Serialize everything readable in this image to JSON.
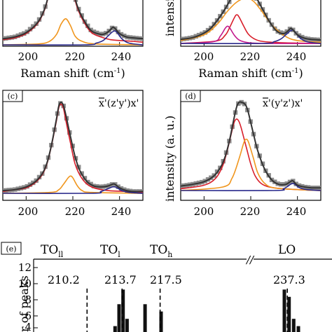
{
  "chart_data": [
    {
      "id": "a",
      "type": "line",
      "xlabel": "Raman shift (cm-1)",
      "xlabel_main": "Raman shift (cm",
      "xlabel_sup": "-1",
      "xlabel_tail": ")",
      "xticks": [
        "200",
        "220",
        "240"
      ],
      "xlim": [
        190,
        250
      ],
      "series": [
        {
          "kind": "data",
          "color": "#8c8c8c",
          "x": [
            190,
            195,
            200,
            205,
            208,
            210,
            212,
            214,
            215,
            216,
            218,
            220,
            222,
            225,
            228,
            232,
            234,
            236,
            237,
            238,
            240,
            243,
            246,
            250
          ],
          "y": [
            0.07,
            0.09,
            0.14,
            0.26,
            0.42,
            0.62,
            0.85,
            1.02,
            1.06,
            1.04,
            0.88,
            0.64,
            0.44,
            0.27,
            0.16,
            0.12,
            0.13,
            0.17,
            0.2,
            0.19,
            0.13,
            0.09,
            0.08,
            0.07
          ]
        },
        {
          "kind": "fit",
          "color": "#333333",
          "x": [
            190,
            195,
            200,
            205,
            208,
            210,
            212,
            214,
            215,
            216,
            218,
            220,
            222,
            225,
            228,
            232,
            234,
            236,
            237,
            238,
            240,
            243,
            246,
            250
          ],
          "y": [
            0.07,
            0.09,
            0.14,
            0.26,
            0.42,
            0.62,
            0.85,
            1.02,
            1.06,
            1.04,
            0.88,
            0.64,
            0.44,
            0.27,
            0.16,
            0.12,
            0.13,
            0.17,
            0.2,
            0.19,
            0.13,
            0.09,
            0.08,
            0.07
          ]
        },
        {
          "kind": "comp",
          "color": "#d81e2a",
          "x": [
            190,
            195,
            200,
            205,
            208,
            210,
            212,
            214,
            215,
            216,
            218,
            220,
            222,
            225,
            228,
            232,
            236,
            240,
            246,
            250
          ],
          "y": [
            0.06,
            0.08,
            0.13,
            0.25,
            0.41,
            0.61,
            0.84,
            1.0,
            1.04,
            1.02,
            0.86,
            0.62,
            0.42,
            0.25,
            0.14,
            0.09,
            0.06,
            0.05,
            0.04,
            0.03
          ]
        },
        {
          "kind": "comp",
          "color": "#f0961e",
          "x": [
            190,
            205,
            210,
            213,
            215,
            217,
            219,
            221,
            224,
            230,
            250
          ],
          "y": [
            0.0,
            0.01,
            0.04,
            0.12,
            0.24,
            0.3,
            0.22,
            0.1,
            0.04,
            0.01,
            0.0
          ]
        },
        {
          "kind": "comp",
          "color": "#2a2a8c",
          "x": [
            190,
            225,
            230,
            233,
            235,
            237,
            238,
            239,
            241,
            244,
            250
          ],
          "y": [
            0.0,
            0.0,
            0.02,
            0.05,
            0.1,
            0.15,
            0.16,
            0.14,
            0.07,
            0.02,
            0.0
          ]
        }
      ]
    },
    {
      "id": "b",
      "type": "line",
      "ylabel": "intensi",
      "xlabel": "Raman shift (cm-1)",
      "xlabel_main": "Raman shift (cm",
      "xlabel_sup": "-1",
      "xlabel_tail": ")",
      "xticks": [
        "200",
        "220",
        "240"
      ],
      "xlim": [
        190,
        250
      ],
      "series": [
        {
          "kind": "data",
          "color": "#8c8c8c",
          "x": [
            190,
            195,
            200,
            203,
            206,
            209,
            211,
            213,
            215,
            217,
            219,
            222,
            225,
            228,
            231,
            234,
            236,
            237,
            238,
            240,
            243,
            246,
            250
          ],
          "y": [
            0.07,
            0.1,
            0.18,
            0.27,
            0.42,
            0.6,
            0.74,
            0.88,
            0.97,
            1.0,
            0.97,
            0.82,
            0.6,
            0.38,
            0.22,
            0.17,
            0.22,
            0.26,
            0.24,
            0.15,
            0.09,
            0.07,
            0.06
          ]
        },
        {
          "kind": "fit",
          "color": "#333333",
          "x": [
            190,
            195,
            200,
            203,
            206,
            209,
            211,
            213,
            215,
            217,
            219,
            222,
            225,
            228,
            231,
            234,
            236,
            237,
            238,
            240,
            243,
            246,
            250
          ],
          "y": [
            0.07,
            0.1,
            0.18,
            0.27,
            0.42,
            0.6,
            0.74,
            0.88,
            0.97,
            1.0,
            0.97,
            0.82,
            0.6,
            0.38,
            0.22,
            0.17,
            0.22,
            0.26,
            0.24,
            0.15,
            0.09,
            0.07,
            0.06
          ]
        },
        {
          "kind": "comp",
          "color": "#f0961e",
          "x": [
            190,
            200,
            206,
            210,
            214,
            218,
            221,
            224,
            227,
            230,
            235,
            240,
            250
          ],
          "y": [
            0.05,
            0.15,
            0.35,
            0.56,
            0.72,
            0.79,
            0.74,
            0.6,
            0.43,
            0.28,
            0.12,
            0.05,
            0.02
          ]
        },
        {
          "kind": "comp",
          "color": "#d81e2a",
          "x": [
            190,
            205,
            209,
            211,
            213,
            214,
            215,
            217,
            219,
            222,
            226,
            235,
            250
          ],
          "y": [
            0.0,
            0.04,
            0.14,
            0.28,
            0.45,
            0.5,
            0.46,
            0.3,
            0.16,
            0.07,
            0.03,
            0.01,
            0.0
          ]
        },
        {
          "kind": "comp",
          "color": "#c2188b",
          "x": [
            190,
            204,
            207,
            209,
            210,
            211,
            213,
            215,
            218,
            225,
            250
          ],
          "y": [
            0.0,
            0.03,
            0.13,
            0.26,
            0.3,
            0.27,
            0.14,
            0.06,
            0.02,
            0.0,
            0.0
          ]
        },
        {
          "kind": "comp",
          "color": "#2a2a8c",
          "x": [
            190,
            225,
            230,
            233,
            235,
            237,
            238,
            239,
            241,
            244,
            250
          ],
          "y": [
            0.0,
            0.0,
            0.03,
            0.08,
            0.15,
            0.22,
            0.23,
            0.2,
            0.1,
            0.03,
            0.0
          ]
        }
      ]
    },
    {
      "id": "c",
      "type": "line",
      "panel_label": "(c)",
      "geometry_pre": "x",
      "geometry_mid": "'(z'y')x'",
      "xticks": [
        "200",
        "220",
        "240"
      ],
      "xlim": [
        190,
        250
      ],
      "series": [
        {
          "kind": "data",
          "color": "#8c8c8c",
          "x": [
            190,
            195,
            200,
            204,
            207,
            209,
            211,
            213,
            214,
            215,
            216,
            217,
            219,
            221,
            223,
            226,
            229,
            232,
            235,
            237,
            238,
            240,
            243,
            246,
            250
          ],
          "y": [
            0.03,
            0.04,
            0.07,
            0.13,
            0.22,
            0.34,
            0.55,
            0.82,
            0.96,
            1.0,
            0.96,
            0.86,
            0.62,
            0.4,
            0.25,
            0.13,
            0.08,
            0.07,
            0.08,
            0.1,
            0.1,
            0.06,
            0.03,
            0.02,
            0.02
          ]
        },
        {
          "kind": "fit",
          "color": "#333333",
          "x": [
            190,
            195,
            200,
            204,
            207,
            209,
            211,
            213,
            214,
            215,
            216,
            217,
            219,
            221,
            223,
            226,
            229,
            232,
            235,
            237,
            238,
            240,
            243,
            246,
            250
          ],
          "y": [
            0.03,
            0.04,
            0.07,
            0.13,
            0.22,
            0.34,
            0.55,
            0.82,
            0.96,
            1.0,
            0.96,
            0.86,
            0.62,
            0.4,
            0.25,
            0.13,
            0.08,
            0.07,
            0.08,
            0.1,
            0.1,
            0.06,
            0.03,
            0.02,
            0.02
          ]
        },
        {
          "kind": "comp",
          "color": "#d81e2a",
          "x": [
            190,
            195,
            200,
            204,
            207,
            209,
            211,
            213,
            214,
            215,
            216,
            217,
            219,
            221,
            224,
            228,
            235,
            245,
            250
          ],
          "y": [
            0.02,
            0.04,
            0.06,
            0.12,
            0.21,
            0.33,
            0.54,
            0.8,
            0.94,
            0.98,
            0.93,
            0.8,
            0.55,
            0.32,
            0.16,
            0.07,
            0.03,
            0.02,
            0.01
          ]
        },
        {
          "kind": "comp",
          "color": "#f0961e",
          "x": [
            190,
            210,
            214,
            216,
            218,
            219,
            220,
            222,
            224,
            228,
            250
          ],
          "y": [
            0.0,
            0.01,
            0.04,
            0.1,
            0.17,
            0.19,
            0.17,
            0.08,
            0.03,
            0.01,
            0.0
          ]
        },
        {
          "kind": "comp",
          "color": "#2a2a8c",
          "x": [
            190,
            228,
            232,
            235,
            237,
            238,
            239,
            241,
            244,
            250
          ],
          "y": [
            0.0,
            0.0,
            0.02,
            0.05,
            0.07,
            0.07,
            0.06,
            0.03,
            0.01,
            0.0
          ]
        }
      ]
    },
    {
      "id": "d",
      "type": "line",
      "panel_label": "(d)",
      "ylabel": "intensity (a. u.)",
      "geometry_pre": "x",
      "geometry_mid": "'(y'z')x'",
      "xticks": [
        "200",
        "220",
        "240"
      ],
      "xlim": [
        190,
        250
      ],
      "series": [
        {
          "kind": "data",
          "color": "#8c8c8c",
          "x": [
            190,
            195,
            200,
            204,
            207,
            209,
            211,
            213,
            214,
            215,
            216,
            217,
            218,
            219,
            221,
            223,
            226,
            229,
            232,
            235,
            237,
            238,
            240,
            243,
            246,
            250
          ],
          "y": [
            0.05,
            0.07,
            0.1,
            0.16,
            0.26,
            0.38,
            0.58,
            0.84,
            0.95,
            1.0,
            1.0,
            0.99,
            0.96,
            0.88,
            0.66,
            0.45,
            0.24,
            0.12,
            0.07,
            0.07,
            0.1,
            0.11,
            0.06,
            0.04,
            0.03,
            0.03
          ]
        },
        {
          "kind": "fit",
          "color": "#333333",
          "x": [
            190,
            195,
            200,
            204,
            207,
            209,
            211,
            213,
            214,
            215,
            216,
            217,
            218,
            219,
            221,
            223,
            226,
            229,
            232,
            235,
            237,
            238,
            240,
            243,
            246,
            250
          ],
          "y": [
            0.05,
            0.07,
            0.1,
            0.16,
            0.26,
            0.38,
            0.58,
            0.84,
            0.95,
            1.0,
            1.0,
            0.99,
            0.96,
            0.88,
            0.66,
            0.45,
            0.24,
            0.12,
            0.07,
            0.07,
            0.1,
            0.11,
            0.06,
            0.04,
            0.03,
            0.03
          ]
        },
        {
          "kind": "comp",
          "color": "#d81e2a",
          "x": [
            190,
            200,
            205,
            208,
            210,
            212,
            213,
            214,
            215,
            216,
            218,
            220,
            222,
            225,
            230,
            240,
            250
          ],
          "y": [
            0.02,
            0.06,
            0.14,
            0.28,
            0.46,
            0.68,
            0.78,
            0.81,
            0.78,
            0.7,
            0.5,
            0.3,
            0.16,
            0.07,
            0.03,
            0.01,
            0.0
          ]
        },
        {
          "kind": "comp",
          "color": "#f0961e",
          "x": [
            190,
            208,
            212,
            215,
            217,
            218,
            219,
            221,
            223,
            226,
            230,
            240,
            250
          ],
          "y": [
            0.0,
            0.04,
            0.14,
            0.36,
            0.54,
            0.58,
            0.55,
            0.38,
            0.2,
            0.08,
            0.03,
            0.01,
            0.0
          ]
        },
        {
          "kind": "comp",
          "color": "#2a2a8c",
          "x": [
            190,
            230,
            234,
            236,
            237,
            238,
            239,
            241,
            244,
            250
          ],
          "y": [
            0.0,
            0.0,
            0.02,
            0.05,
            0.07,
            0.08,
            0.07,
            0.03,
            0.01,
            0.0
          ]
        }
      ]
    },
    {
      "id": "e",
      "type": "bar",
      "panel_label": "(e)",
      "ylabel": "r of peaks",
      "yticks": [
        "12",
        "10",
        "8",
        "6",
        "4"
      ],
      "ylim": [
        0,
        12
      ],
      "mode_labels": [
        {
          "main": "TO",
          "sub": "ll",
          "x": 210.2
        },
        {
          "main": "TO",
          "sub": "l",
          "x": 213.7
        },
        {
          "main": "TO",
          "sub": "h",
          "x": 217.5
        },
        {
          "main": "LO",
          "sub": "",
          "x": 237.3
        }
      ],
      "mode_positions": [
        "210.2",
        "213.7",
        "217.5",
        "237.3"
      ],
      "axis_break": "//",
      "bars": [
        {
          "x": 212.6,
          "value": 3
        },
        {
          "x": 213.0,
          "value": 4
        },
        {
          "x": 213.4,
          "value": 7
        },
        {
          "x": 213.8,
          "value": 9
        },
        {
          "x": 214.2,
          "value": 5
        },
        {
          "x": 214.6,
          "value": 3
        },
        {
          "x": 216.0,
          "value": 7
        },
        {
          "x": 217.6,
          "value": 6
        },
        {
          "x": 219.4,
          "value": 3
        },
        {
          "x": 221.2,
          "value": 3
        },
        {
          "x": 236.8,
          "value": 9
        },
        {
          "x": 237.6,
          "value": 8
        },
        {
          "x": 238.4,
          "value": 5
        },
        {
          "x": 239.2,
          "value": 4
        },
        {
          "x": 240.2,
          "value": 3
        }
      ]
    }
  ]
}
